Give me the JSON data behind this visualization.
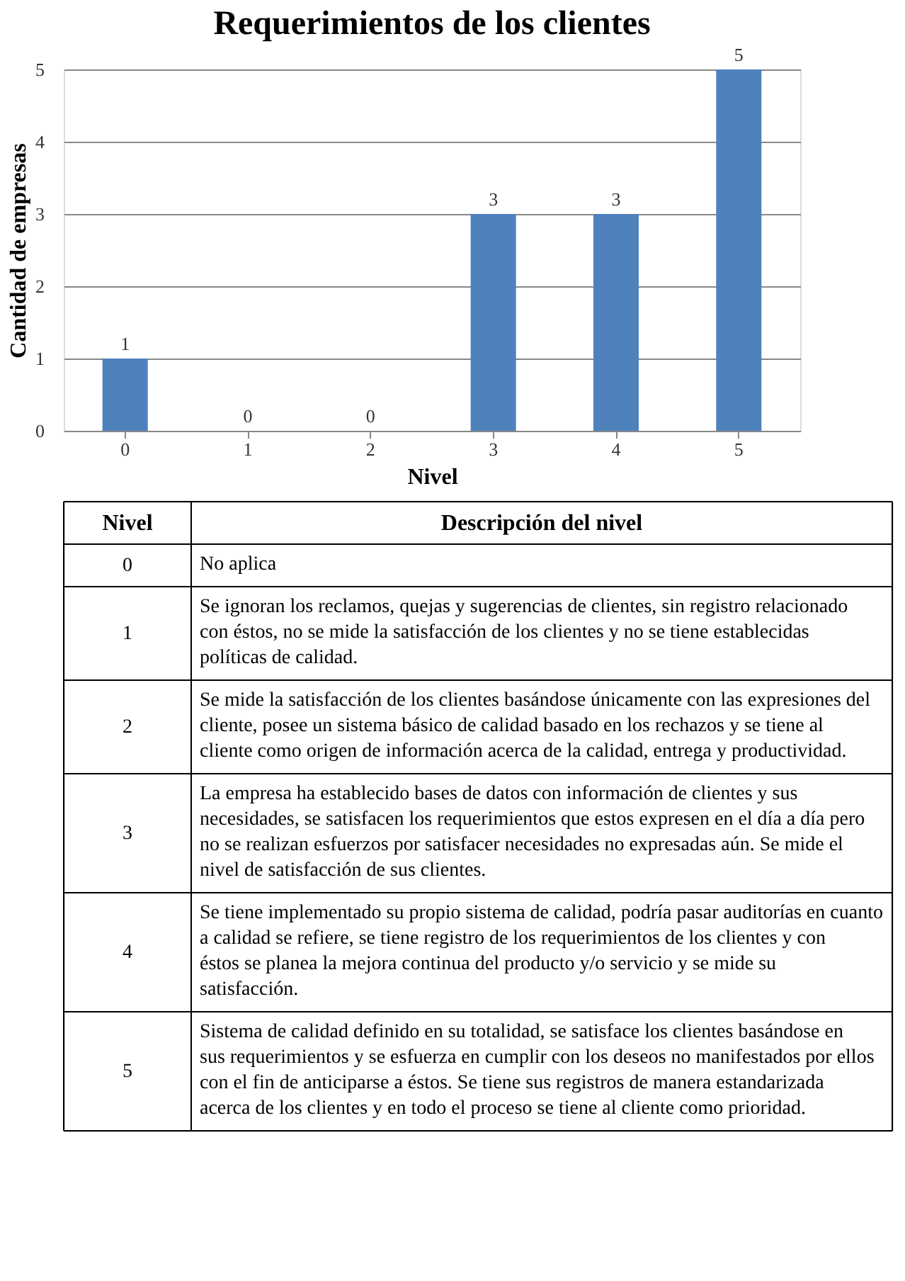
{
  "chart_data": {
    "type": "bar",
    "title": "Requerimientos de los clientes",
    "xlabel": "Nivel",
    "ylabel": "Cantidad  de empresas",
    "categories": [
      "0",
      "1",
      "2",
      "3",
      "4",
      "5"
    ],
    "values": [
      1,
      0,
      0,
      3,
      3,
      5
    ],
    "color": "#4f81bd",
    "ylim": [
      0,
      5
    ],
    "yticks": [
      0,
      1,
      2,
      3,
      4,
      5
    ],
    "grid": "y",
    "data_labels": true,
    "annotations": [
      "Nivel",
      "Descripción del nivel",
      "No aplica",
      "Se ignoran los reclamos, quejas y sugerencias de clientes, sin registro relacionado con éstos, no se mide la satisfacción de los clientes y no se tiene establecidas políticas de calidad.",
      "Se mide la satisfacción de los clientes basándose únicamente con las expresiones del cliente, posee un sistema básico de calidad basado en los rechazos y se tiene al cliente como origen de información acerca de la calidad, entrega y productividad.",
      "La empresa ha establecido bases de datos con información de clientes y sus necesidades, se satisfacen los requerimientos que estos expresen en el día a día pero no se realizan esfuerzos por satisfacer necesidades no expresadas aún. Se mide el nivel de satisfacción de sus clientes.",
      "Se tiene implementado su propio sistema de calidad, podría pasar auditorías en cuanto a calidad se refiere, se tiene registro de los requerimientos de los clientes y con éstos se planea la mejora continua del producto y/o servicio y se mide su satisfacción.",
      "Sistema de calidad definido en su totalidad, se satisface los clientes basándose en sus requerimientos y se esfuerza en cumplir con los deseos no manifestados por ellos con el fin de anticiparse a éstos. Se tiene sus registros de manera estandarizada acerca de los clientes y en todo el proceso se tiene al cliente como prioridad."
    ]
  }
}
